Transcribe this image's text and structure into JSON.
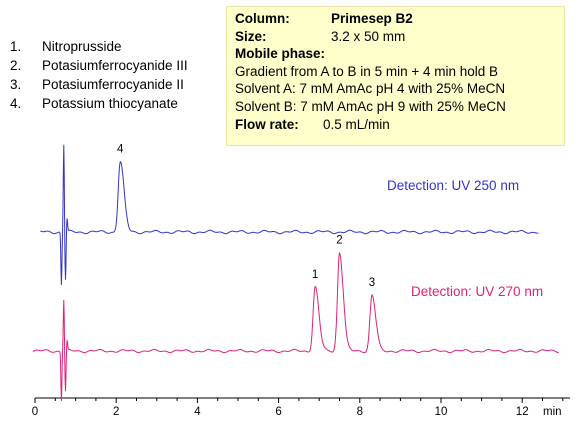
{
  "compounds": [
    {
      "num": "1.",
      "name": "Nitroprusside"
    },
    {
      "num": "2.",
      "name": "Potasiumferrocyanide III"
    },
    {
      "num": "3.",
      "name": "Potasiumferrocyanide II"
    },
    {
      "num": "4.",
      "name": "Potassium thiocyanate"
    }
  ],
  "conditions": {
    "column_label": "Column:",
    "column_value": "Primesep B2",
    "size_label": "Size:",
    "size_value": "3.2 x 50 mm",
    "mobile_phase_label": "Mobile phase:",
    "gradient": "Gradient from A to B in 5 min + 4 min hold B",
    "solvent_a": "Solvent A: 7 mM AmAc pH 4 with 25% MeCN",
    "solvent_b": "Solvent B: 7 mM AmAc pH 9 with 25% MeCN",
    "flow_rate_label": "Flow rate:",
    "flow_rate_value": "0.5 mL/min"
  },
  "chart_data": {
    "type": "line",
    "x_unit": "min",
    "xlim": [
      0,
      13
    ],
    "x_ticks": [
      0,
      2,
      4,
      6,
      8,
      10,
      12
    ],
    "series": [
      {
        "name": "Detection: UV 250 nm",
        "color": "#3333cc",
        "peaks": [
          {
            "label": "4",
            "time": 2.1,
            "height": 0.8
          }
        ],
        "injection_time": 0.7
      },
      {
        "name": "Detection: UV 270 nm",
        "color": "#dd2277",
        "peaks": [
          {
            "label": "1",
            "time": 6.9,
            "height": 0.78
          },
          {
            "label": "2",
            "time": 7.5,
            "height": 1.2
          },
          {
            "label": "3",
            "time": 8.3,
            "height": 0.68
          }
        ],
        "injection_time": 0.7
      }
    ]
  }
}
